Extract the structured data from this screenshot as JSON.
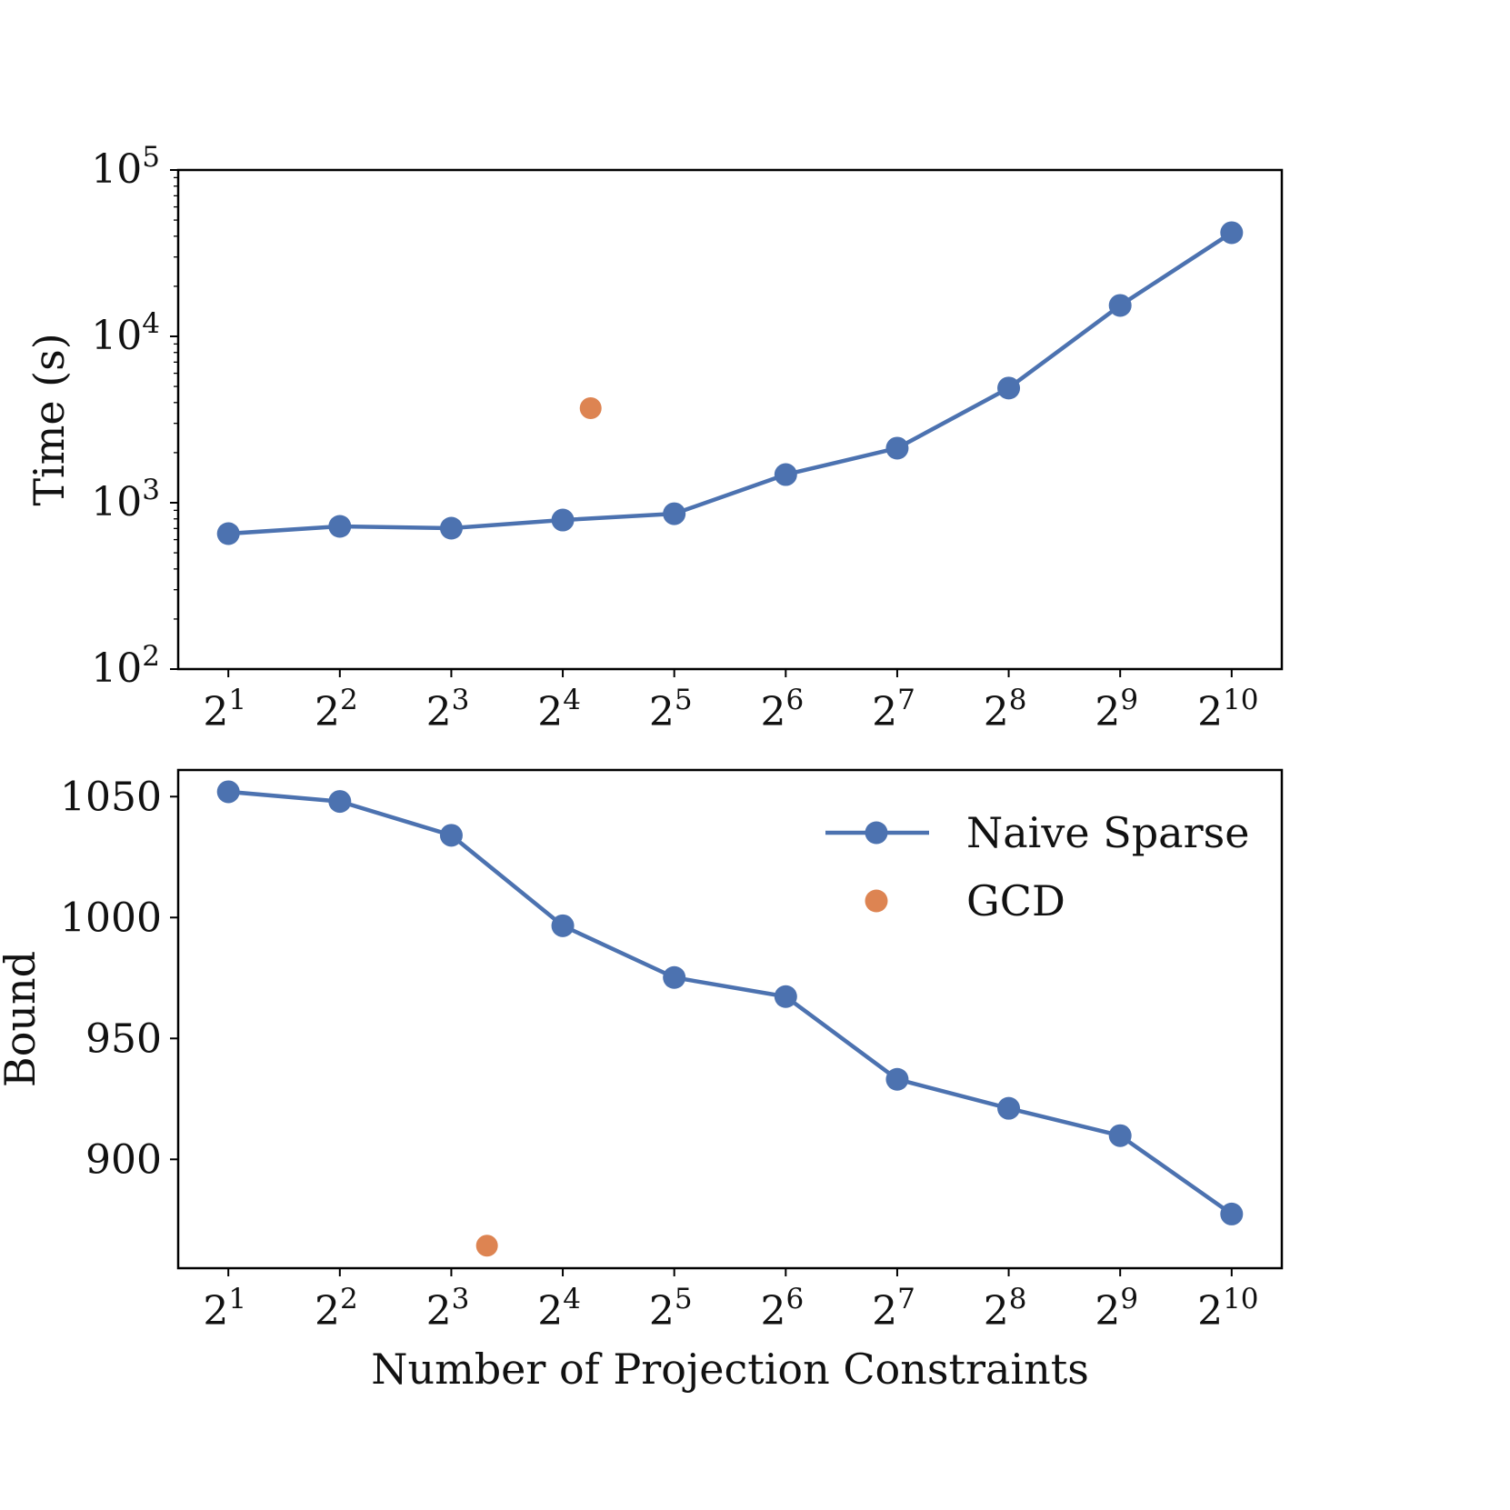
{
  "chart_data": [
    {
      "type": "line",
      "title": "",
      "xlabel": "",
      "ylabel": "Time (s)",
      "yscale": "log",
      "ylim": [
        100,
        100000
      ],
      "x_scale": "log2",
      "xlim_exponent": [
        0.55,
        10.45
      ],
      "x_exponents": [
        1,
        2,
        3,
        4,
        5,
        6,
        7,
        8,
        9,
        10
      ],
      "x_tick_labels": [
        "2^1",
        "2^2",
        "2^3",
        "2^4",
        "2^5",
        "2^6",
        "2^7",
        "2^8",
        "2^9",
        "2^10"
      ],
      "y_ticks": [
        100,
        1000,
        10000,
        100000
      ],
      "y_tick_labels": [
        "10^2",
        "10^3",
        "10^4",
        "10^5"
      ],
      "grid": false,
      "series": [
        {
          "name": "Naive Sparse",
          "color": "#4C72B0",
          "style": "line-marker",
          "x_exponent": [
            1,
            2,
            3,
            4,
            5,
            6,
            7,
            8,
            9,
            10
          ],
          "values": [
            652,
            721,
            703,
            787,
            859,
            1476,
            2128,
            4890,
            15350,
            42000
          ]
        },
        {
          "name": "GCD",
          "color": "#DD8452",
          "style": "marker",
          "x_exponent": [
            4.25
          ],
          "values": [
            3700
          ]
        }
      ]
    },
    {
      "type": "line",
      "title": "",
      "xlabel": "Number of Projection Constraints",
      "ylabel": "Bound",
      "yscale": "linear",
      "ylim": [
        855,
        1061
      ],
      "x_scale": "log2",
      "xlim_exponent": [
        0.55,
        10.45
      ],
      "x_exponents": [
        1,
        2,
        3,
        4,
        5,
        6,
        7,
        8,
        9,
        10
      ],
      "x_tick_labels": [
        "2^1",
        "2^2",
        "2^3",
        "2^4",
        "2^5",
        "2^6",
        "2^7",
        "2^8",
        "2^9",
        "2^10"
      ],
      "y_ticks": [
        900,
        950,
        1000,
        1050
      ],
      "y_tick_labels": [
        "900",
        "950",
        "1000",
        "1050"
      ],
      "grid": false,
      "legend": {
        "placement": "top-right",
        "entries": [
          "Naive Sparse",
          "GCD"
        ]
      },
      "series": [
        {
          "name": "Naive Sparse",
          "color": "#4C72B0",
          "style": "line-marker",
          "x_exponent": [
            1,
            2,
            3,
            4,
            5,
            6,
            7,
            8,
            9,
            10
          ],
          "values": [
            1052,
            1048,
            1034,
            996.6,
            975.2,
            967.3,
            933.1,
            921.1,
            909.8,
            877.4
          ]
        },
        {
          "name": "GCD",
          "color": "#DD8452",
          "style": "marker",
          "x_exponent": [
            3.32
          ],
          "values": [
            864.3
          ]
        }
      ]
    }
  ]
}
